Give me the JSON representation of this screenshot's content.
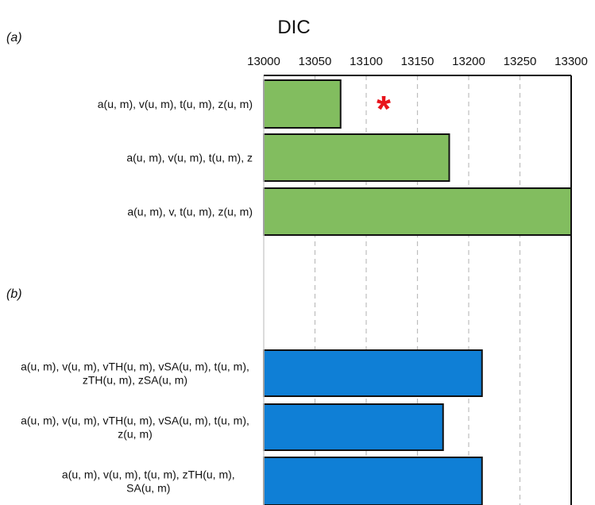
{
  "chart_data": {
    "type": "bar",
    "orientation": "horizontal",
    "title": "DIC",
    "xlim": [
      13000,
      13300
    ],
    "xticks": [
      13000,
      13050,
      13100,
      13150,
      13200,
      13250,
      13300
    ],
    "grid": "vertical-dashed",
    "panels": [
      {
        "label": "(a)",
        "color": "#82bd5f",
        "categories": [
          [
            "a(u, m), v(u, m), t(u, m), z(u, m)"
          ],
          [
            "a(u, m), v(u, m), t(u, m), z"
          ],
          [
            "a(u, m), v, t(u, m), z(u, m)"
          ]
        ],
        "values": [
          13075,
          13181,
          13300
        ],
        "annotations": [
          {
            "category_index": 0,
            "text": "*",
            "color": "#e8141c"
          }
        ]
      },
      {
        "label": "(b)",
        "color": "#0f7fd6",
        "categories": [
          [
            "a(u, m), v(u, m), vTH(u, m), vSA(u, m), t(u, m),",
            "zTH(u, m), zSA(u, m)"
          ],
          [
            "a(u, m), v(u, m), vTH(u, m), vSA(u, m), t(u, m),",
            "z(u, m)"
          ],
          [
            "a(u, m), v(u, m), t(u, m), zTH(u, m),",
            "SA(u, m)"
          ]
        ],
        "values": [
          13213,
          13175,
          13213
        ]
      }
    ]
  }
}
